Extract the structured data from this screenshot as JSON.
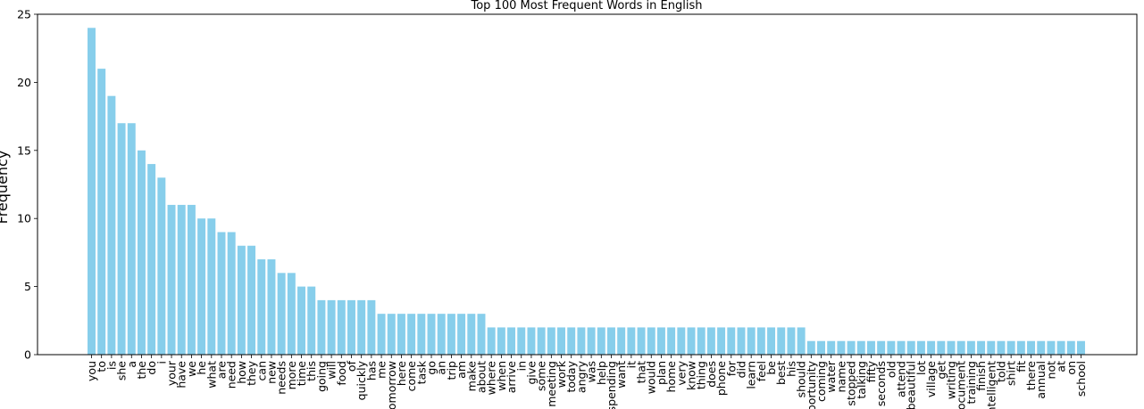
{
  "chart_data": {
    "type": "bar",
    "title": "Top 100 Most Frequent Words in English",
    "xlabel": "",
    "ylabel": "Frequency",
    "ylim": [
      0,
      25
    ],
    "yticks": [
      0,
      5,
      10,
      15,
      20,
      25
    ],
    "grid": false,
    "bar_color": "#87ceeb",
    "categories": [
      "you",
      "to",
      "is",
      "she",
      "a",
      "the",
      "do",
      "i",
      "your",
      "have",
      "we",
      "he",
      "what",
      "are",
      "need",
      "how",
      "they",
      "can",
      "new",
      "needs",
      "more",
      "time",
      "this",
      "going",
      "will",
      "food",
      "of",
      "quickly",
      "has",
      "me",
      "tomorrow",
      "here",
      "come",
      "task",
      "go",
      "an",
      "trip",
      "am",
      "make",
      "about",
      "where",
      "when",
      "arrive",
      "in",
      "give",
      "some",
      "meeting",
      "work",
      "today",
      "angry",
      "was",
      "help",
      "spending",
      "want",
      "it",
      "that",
      "would",
      "plan",
      "home",
      "very",
      "know",
      "thing",
      "does",
      "phone",
      "for",
      "did",
      "learn",
      "feel",
      "be",
      "best",
      "his",
      "should",
      "opportunity",
      "coming",
      "water",
      "name",
      "stopped",
      "talking",
      "fifty",
      "seconds",
      "old",
      "attend",
      "beautiful",
      "lot",
      "village",
      "get",
      "writing",
      "document",
      "training",
      "finish",
      "intelligent",
      "told",
      "shirt",
      "fit",
      "there",
      "annual",
      "not",
      "at",
      "on",
      "school"
    ],
    "values": [
      24,
      21,
      19,
      17,
      17,
      15,
      14,
      13,
      11,
      11,
      11,
      10,
      10,
      9,
      9,
      8,
      8,
      7,
      7,
      6,
      6,
      5,
      5,
      4,
      4,
      4,
      4,
      4,
      4,
      3,
      3,
      3,
      3,
      3,
      3,
      3,
      3,
      3,
      3,
      3,
      2,
      2,
      2,
      2,
      2,
      2,
      2,
      2,
      2,
      2,
      2,
      2,
      2,
      2,
      2,
      2,
      2,
      2,
      2,
      2,
      2,
      2,
      2,
      2,
      2,
      2,
      2,
      2,
      2,
      2,
      2,
      2,
      1,
      1,
      1,
      1,
      1,
      1,
      1,
      1,
      1,
      1,
      1,
      1,
      1,
      1,
      1,
      1,
      1,
      1,
      1,
      1,
      1,
      1,
      1,
      1,
      1,
      1,
      1,
      1
    ]
  }
}
